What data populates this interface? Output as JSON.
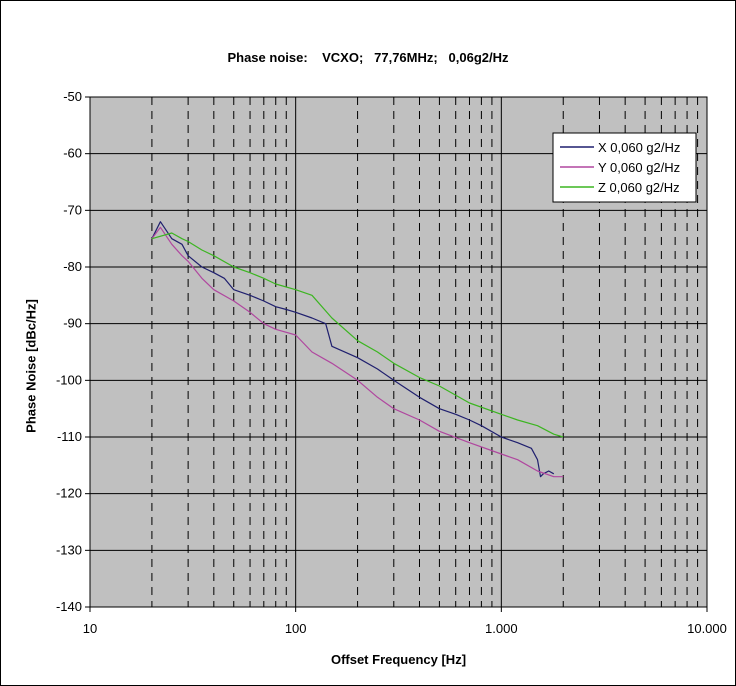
{
  "chart_data": {
    "type": "line",
    "title": "Phase noise:    VCXO;   77,76MHz;   0,06g2/Hz",
    "xlabel": "Offset Frequency [Hz]",
    "ylabel": "Phase Noise [dBc/Hz]",
    "x_scale": "log",
    "xlim": [
      10,
      10000
    ],
    "ylim": [
      -140,
      -50
    ],
    "x_ticks": [
      {
        "value": 10,
        "label": "10"
      },
      {
        "value": 100,
        "label": "100"
      },
      {
        "value": 1000,
        "label": "1.000"
      },
      {
        "value": 10000,
        "label": "10.000"
      }
    ],
    "y_ticks": [
      {
        "value": -50,
        "label": "-50"
      },
      {
        "value": -60,
        "label": "-60"
      },
      {
        "value": -70,
        "label": "-70"
      },
      {
        "value": -80,
        "label": "-80"
      },
      {
        "value": -90,
        "label": "-90"
      },
      {
        "value": -100,
        "label": "-100"
      },
      {
        "value": -110,
        "label": "-110"
      },
      {
        "value": -120,
        "label": "-120"
      },
      {
        "value": -130,
        "label": "-130"
      },
      {
        "value": -140,
        "label": "-140"
      }
    ],
    "grid": true,
    "plot_background": "#c0c0c0",
    "legend_position": "top-right",
    "series": [
      {
        "name": "X 0,060 g2/Hz",
        "color": "#1f1f6e",
        "x": [
          20,
          22,
          25,
          28,
          30,
          35,
          40,
          45,
          50,
          60,
          70,
          80,
          90,
          100,
          120,
          140,
          150,
          200,
          250,
          300,
          400,
          500,
          600,
          700,
          800,
          1000,
          1200,
          1400,
          1500,
          1550,
          1600,
          1700,
          1800
        ],
        "y": [
          -75,
          -72,
          -75,
          -76,
          -78,
          -80,
          -81,
          -82,
          -84,
          -85,
          -86,
          -87,
          -87.5,
          -88,
          -89,
          -90,
          -94,
          -96,
          -98,
          -100,
          -103,
          -105,
          -106,
          -107,
          -108,
          -110,
          -111,
          -112,
          -114,
          -117,
          -116.5,
          -116,
          -116.5
        ]
      },
      {
        "name": "Y 0,060 g2/Hz",
        "color": "#b0479f",
        "x": [
          20,
          22,
          25,
          28,
          30,
          35,
          40,
          50,
          60,
          70,
          80,
          100,
          120,
          150,
          200,
          250,
          300,
          400,
          500,
          700,
          1000,
          1200,
          1500,
          1800,
          2000
        ],
        "y": [
          -75,
          -73,
          -76,
          -78,
          -79,
          -82,
          -84,
          -86,
          -88,
          -90,
          -91,
          -92,
          -95,
          -97,
          -100,
          -103,
          -105,
          -107,
          -109,
          -111,
          -113,
          -114,
          -116,
          -117,
          -117
        ]
      },
      {
        "name": "Z 0,060 g2/Hz",
        "color": "#3cb521",
        "x": [
          20,
          25,
          28,
          30,
          35,
          40,
          50,
          60,
          70,
          80,
          100,
          120,
          150,
          200,
          250,
          300,
          400,
          500,
          700,
          1000,
          1200,
          1500,
          1800,
          2000
        ],
        "y": [
          -75,
          -74,
          -75,
          -75.5,
          -77,
          -78,
          -80,
          -81,
          -82,
          -83,
          -84,
          -85,
          -89,
          -93,
          -95,
          -97,
          -99.5,
          -101,
          -104,
          -106,
          -107,
          -108,
          -109.5,
          -110
        ]
      }
    ]
  }
}
